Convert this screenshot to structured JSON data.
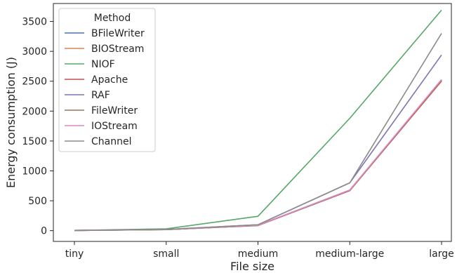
{
  "chart_data": {
    "type": "line",
    "xlabel": "File size",
    "ylabel": "Energy consumption (J)",
    "categories": [
      "tiny",
      "small",
      "medium",
      "medium-large",
      "large"
    ],
    "ylim": [
      -180,
      3800
    ],
    "yticks": [
      0,
      500,
      1000,
      1500,
      2000,
      2500,
      3000,
      3500
    ],
    "grid": false,
    "legend": {
      "title": "Method",
      "position": "top-left"
    },
    "series": [
      {
        "name": "BFileWriter",
        "color": "#4c72b0",
        "values": [
          3,
          18,
          90,
          680,
          2520
        ]
      },
      {
        "name": "BIOStream",
        "color": "#dd8452",
        "values": [
          3,
          17,
          88,
          670,
          2500
        ]
      },
      {
        "name": "NIOF",
        "color": "#55a868",
        "values": [
          5,
          30,
          240,
          1880,
          3690
        ]
      },
      {
        "name": "Apache",
        "color": "#c44e52",
        "values": [
          3,
          17,
          85,
          670,
          2510
        ]
      },
      {
        "name": "RAF",
        "color": "#8172b3",
        "values": [
          4,
          20,
          100,
          800,
          2940
        ]
      },
      {
        "name": "FileWriter",
        "color": "#937860",
        "values": [
          3,
          17,
          88,
          675,
          2520
        ]
      },
      {
        "name": "IOStream",
        "color": "#da8bc3",
        "values": [
          3,
          18,
          90,
          680,
          2530
        ]
      },
      {
        "name": "Channel",
        "color": "#8c8c8c",
        "values": [
          4,
          20,
          100,
          800,
          3300
        ]
      }
    ]
  }
}
